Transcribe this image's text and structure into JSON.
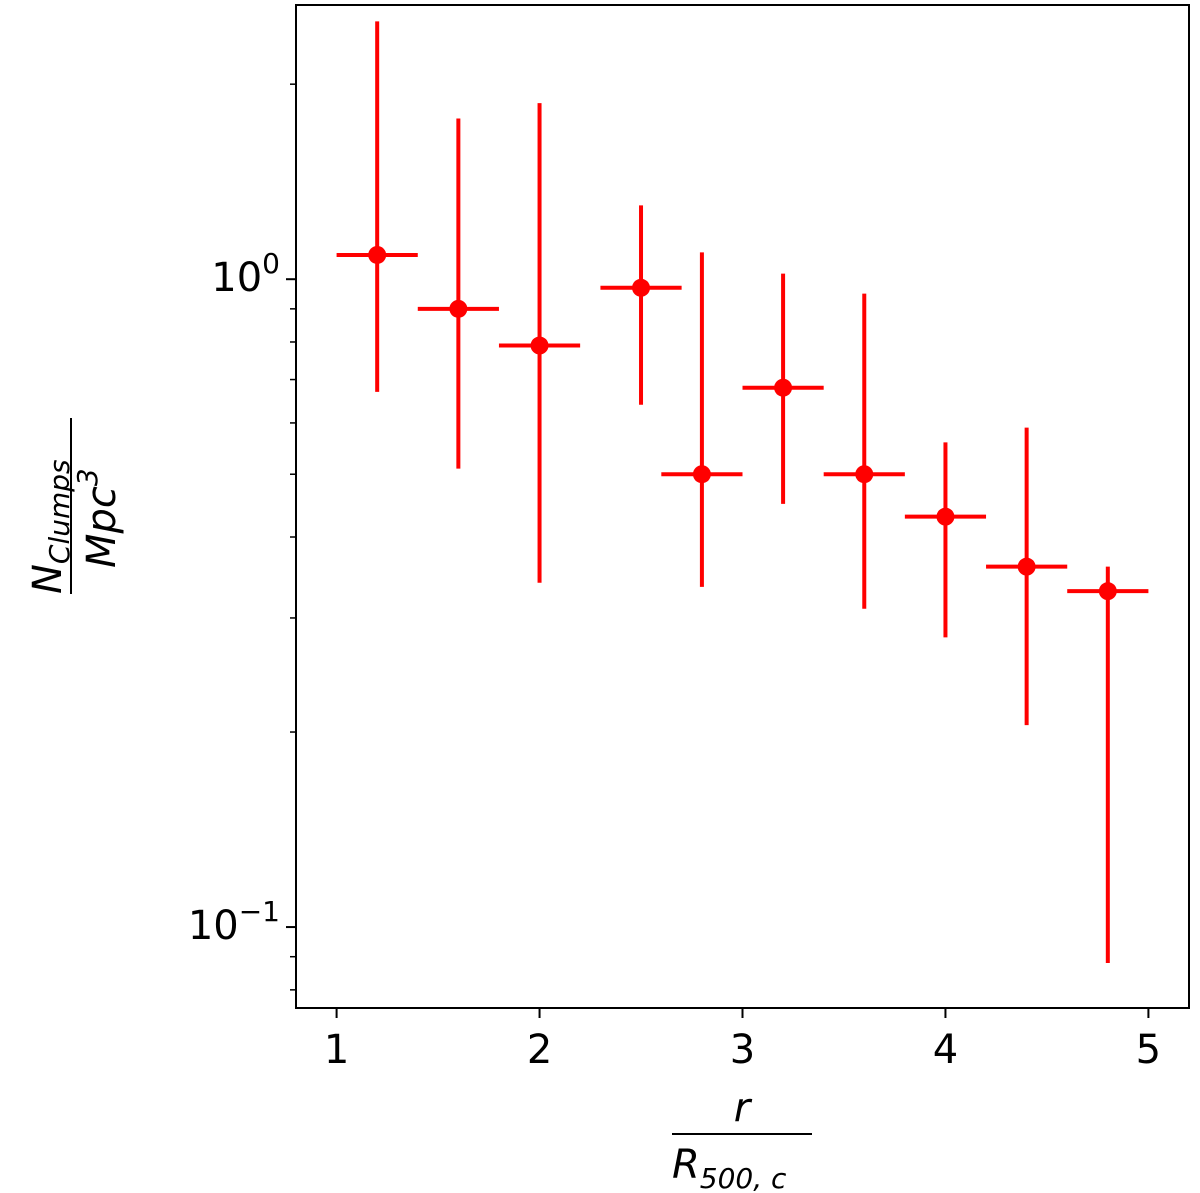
{
  "chart_data": {
    "type": "scatter",
    "xlabel": {
      "numerator": "r",
      "denominator_main": "R",
      "denominator_sub": "500, c"
    },
    "ylabel": {
      "numerator_main": "N",
      "numerator_sub": "Clumps",
      "denominator_main": "Mpc",
      "denominator_sup": "3"
    },
    "xlim": [
      0.8,
      5.2
    ],
    "ylim": [
      0.075,
      2.65
    ],
    "yscale": "log",
    "x_ticks": [
      1,
      2,
      3,
      4,
      5
    ],
    "x_tick_labels": [
      "1",
      "2",
      "3",
      "4",
      "5"
    ],
    "y_major_ticks": [
      0.1,
      1.0
    ],
    "y_major_tick_labels": [
      {
        "base": "10",
        "exp": "−1"
      },
      {
        "base": "10",
        "exp": "0"
      }
    ],
    "y_minor_ticks": [
      0.08,
      0.09,
      0.2,
      0.3,
      0.4,
      0.5,
      0.6,
      0.7,
      0.8,
      0.9,
      2.0
    ],
    "grid": false,
    "legend": "none",
    "color": "#ff0000",
    "points": [
      {
        "x": 1.2,
        "y": 1.09,
        "xerr": 0.2,
        "yerr_low": 0.67,
        "yerr_high": 2.5
      },
      {
        "x": 1.6,
        "y": 0.9,
        "xerr": 0.2,
        "yerr_low": 0.51,
        "yerr_high": 1.77
      },
      {
        "x": 2.0,
        "y": 0.79,
        "xerr": 0.2,
        "yerr_low": 0.34,
        "yerr_high": 1.87
      },
      {
        "x": 2.5,
        "y": 0.97,
        "xerr": 0.2,
        "yerr_low": 0.64,
        "yerr_high": 1.3
      },
      {
        "x": 2.8,
        "y": 0.5,
        "xerr": 0.2,
        "yerr_low": 0.335,
        "yerr_high": 1.1
      },
      {
        "x": 3.2,
        "y": 0.68,
        "xerr": 0.2,
        "yerr_low": 0.45,
        "yerr_high": 1.02
      },
      {
        "x": 3.6,
        "y": 0.5,
        "xerr": 0.2,
        "yerr_low": 0.31,
        "yerr_high": 0.95
      },
      {
        "x": 4.0,
        "y": 0.43,
        "xerr": 0.2,
        "yerr_low": 0.28,
        "yerr_high": 0.56
      },
      {
        "x": 4.4,
        "y": 0.36,
        "xerr": 0.2,
        "yerr_low": 0.205,
        "yerr_high": 0.59
      },
      {
        "x": 4.8,
        "y": 0.33,
        "xerr": 0.2,
        "yerr_low": 0.088,
        "yerr_high": 0.36
      }
    ]
  }
}
